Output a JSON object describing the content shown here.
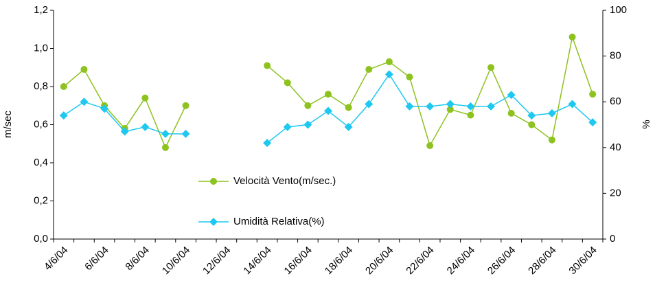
{
  "chart_data": {
    "type": "line",
    "categories": [
      "4/6/04",
      null,
      "6/6/04",
      null,
      "8/6/04",
      null,
      "10/6/04",
      null,
      "12/6/04",
      null,
      "14/6/04",
      null,
      "16/6/04",
      null,
      "18/6/04",
      null,
      "20/6/04",
      null,
      "22/6/04",
      null,
      "24/6/04",
      null,
      "26/6/04",
      null,
      "28/6/04",
      null,
      "30/6/04"
    ],
    "series": [
      {
        "name": "Velocità Vento(m/sec.)",
        "color": "#8dc21f",
        "marker": "circle",
        "values": [
          0.8,
          0.89,
          0.7,
          0.58,
          0.74,
          0.48,
          0.7,
          null,
          null,
          null,
          0.91,
          0.82,
          0.7,
          0.76,
          0.69,
          0.89,
          0.93,
          0.85,
          0.49,
          0.68,
          0.65,
          0.9,
          0.66,
          0.6,
          0.52,
          1.06,
          0.76
        ]
      },
      {
        "name": "Umidità Relativa(%)",
        "color": "#1ec8f0",
        "marker": "diamond",
        "axis": "y2",
        "values": [
          54,
          60,
          57,
          47,
          49,
          46,
          46,
          null,
          null,
          null,
          42,
          49,
          50,
          56,
          49,
          59,
          72,
          58,
          58,
          59,
          58,
          58,
          63,
          54,
          55,
          59,
          51
        ]
      }
    ],
    "ylabel": "m/sec",
    "y2label": "%",
    "ylim": [
      0,
      1.2
    ],
    "yticks": [
      {
        "value": 0,
        "label": "0,0"
      },
      {
        "value": 0.2,
        "label": "0,2"
      },
      {
        "value": 0.4,
        "label": "0,4"
      },
      {
        "value": 0.6,
        "label": "0,6"
      },
      {
        "value": 0.8,
        "label": "0,8"
      },
      {
        "value": 1.0,
        "label": "1,0"
      },
      {
        "value": 1.2,
        "label": "1,2"
      }
    ],
    "y2lim": [
      0,
      100
    ],
    "y2ticks": [
      0,
      20,
      40,
      60,
      80,
      100
    ],
    "grid": false
  }
}
